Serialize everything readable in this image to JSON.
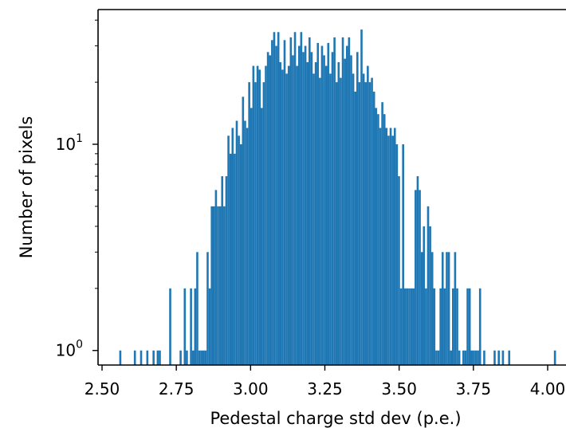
{
  "chart_data": {
    "type": "bar",
    "title": "",
    "xlabel": "Pedestal charge std dev (p.e.)",
    "ylabel": "Number of pixels",
    "yscale": "log",
    "xlim": [
      2.49,
      4.02
    ],
    "ylim": [
      0.85,
      45
    ],
    "bin_width": 0.007,
    "xticks": [
      {
        "value": 2.5,
        "label": "2.50"
      },
      {
        "value": 2.75,
        "label": "2.75"
      },
      {
        "value": 3.0,
        "label": "3.00"
      },
      {
        "value": 3.25,
        "label": "3.25"
      },
      {
        "value": 3.5,
        "label": "3.50"
      },
      {
        "value": 3.75,
        "label": "3.75"
      },
      {
        "value": 4.0,
        "label": "4.00"
      }
    ],
    "yticks": [
      {
        "value": 1,
        "base": "10",
        "exp": "0"
      },
      {
        "value": 10,
        "base": "10",
        "exp": "1"
      }
    ],
    "color": "#1f77b4",
    "grid": false,
    "legend": "none",
    "bins": [
      [
        2.558,
        1
      ],
      [
        2.607,
        1
      ],
      [
        2.628,
        1
      ],
      [
        2.649,
        1
      ],
      [
        2.67,
        1
      ],
      [
        2.684,
        1
      ],
      [
        2.691,
        1
      ],
      [
        2.726,
        2
      ],
      [
        2.761,
        1
      ],
      [
        2.775,
        2
      ],
      [
        2.782,
        1
      ],
      [
        2.796,
        2
      ],
      [
        2.803,
        1
      ],
      [
        2.81,
        2
      ],
      [
        2.817,
        3
      ],
      [
        2.824,
        1
      ],
      [
        2.831,
        1
      ],
      [
        2.838,
        1
      ],
      [
        2.845,
        1
      ],
      [
        2.852,
        3
      ],
      [
        2.859,
        2
      ],
      [
        2.866,
        5
      ],
      [
        2.873,
        5
      ],
      [
        2.88,
        6
      ],
      [
        2.887,
        5
      ],
      [
        2.894,
        5
      ],
      [
        2.901,
        7
      ],
      [
        2.908,
        5
      ],
      [
        2.915,
        7
      ],
      [
        2.922,
        11
      ],
      [
        2.929,
        9
      ],
      [
        2.936,
        12
      ],
      [
        2.943,
        9
      ],
      [
        2.95,
        13
      ],
      [
        2.957,
        11
      ],
      [
        2.964,
        10
      ],
      [
        2.971,
        17
      ],
      [
        2.978,
        13
      ],
      [
        2.985,
        12
      ],
      [
        2.992,
        20
      ],
      [
        2.999,
        15
      ],
      [
        3.006,
        24
      ],
      [
        3.013,
        20
      ],
      [
        3.02,
        24
      ],
      [
        3.027,
        23
      ],
      [
        3.034,
        15
      ],
      [
        3.041,
        20
      ],
      [
        3.048,
        24
      ],
      [
        3.055,
        28
      ],
      [
        3.062,
        27
      ],
      [
        3.069,
        32
      ],
      [
        3.076,
        35
      ],
      [
        3.083,
        30
      ],
      [
        3.09,
        35
      ],
      [
        3.097,
        25
      ],
      [
        3.104,
        23
      ],
      [
        3.111,
        32
      ],
      [
        3.118,
        22
      ],
      [
        3.125,
        24
      ],
      [
        3.132,
        33
      ],
      [
        3.139,
        27
      ],
      [
        3.146,
        35
      ],
      [
        3.153,
        24
      ],
      [
        3.16,
        30
      ],
      [
        3.167,
        35
      ],
      [
        3.174,
        28
      ],
      [
        3.181,
        30
      ],
      [
        3.188,
        25
      ],
      [
        3.195,
        33
      ],
      [
        3.202,
        28
      ],
      [
        3.209,
        22
      ],
      [
        3.216,
        25
      ],
      [
        3.223,
        31
      ],
      [
        3.23,
        21
      ],
      [
        3.237,
        30
      ],
      [
        3.244,
        27
      ],
      [
        3.251,
        24
      ],
      [
        3.258,
        31
      ],
      [
        3.265,
        22
      ],
      [
        3.272,
        28
      ],
      [
        3.279,
        33
      ],
      [
        3.286,
        20
      ],
      [
        3.293,
        25
      ],
      [
        3.3,
        21
      ],
      [
        3.307,
        33
      ],
      [
        3.314,
        26
      ],
      [
        3.321,
        30
      ],
      [
        3.328,
        33
      ],
      [
        3.335,
        27
      ],
      [
        3.342,
        22
      ],
      [
        3.349,
        18
      ],
      [
        3.356,
        28
      ],
      [
        3.363,
        20
      ],
      [
        3.37,
        36
      ],
      [
        3.377,
        22
      ],
      [
        3.384,
        20
      ],
      [
        3.391,
        24
      ],
      [
        3.398,
        20
      ],
      [
        3.405,
        21
      ],
      [
        3.412,
        18
      ],
      [
        3.419,
        15
      ],
      [
        3.426,
        14
      ],
      [
        3.433,
        12
      ],
      [
        3.44,
        16
      ],
      [
        3.447,
        14
      ],
      [
        3.454,
        12
      ],
      [
        3.461,
        11
      ],
      [
        3.468,
        12
      ],
      [
        3.475,
        11
      ],
      [
        3.482,
        12
      ],
      [
        3.489,
        10
      ],
      [
        3.496,
        7
      ],
      [
        3.503,
        2
      ],
      [
        3.51,
        10
      ],
      [
        3.517,
        2
      ],
      [
        3.524,
        2
      ],
      [
        3.531,
        2
      ],
      [
        3.538,
        2
      ],
      [
        3.545,
        2
      ],
      [
        3.552,
        6
      ],
      [
        3.559,
        7
      ],
      [
        3.566,
        6
      ],
      [
        3.573,
        3
      ],
      [
        3.58,
        4
      ],
      [
        3.587,
        2
      ],
      [
        3.594,
        5
      ],
      [
        3.601,
        4
      ],
      [
        3.608,
        3
      ],
      [
        3.615,
        2
      ],
      [
        3.622,
        1
      ],
      [
        3.629,
        1
      ],
      [
        3.636,
        2
      ],
      [
        3.643,
        3
      ],
      [
        3.65,
        2
      ],
      [
        3.657,
        3
      ],
      [
        3.664,
        3
      ],
      [
        3.671,
        1
      ],
      [
        3.678,
        2
      ],
      [
        3.685,
        3
      ],
      [
        3.692,
        2
      ],
      [
        3.699,
        1
      ],
      [
        3.713,
        1
      ],
      [
        3.72,
        1
      ],
      [
        3.727,
        2
      ],
      [
        3.734,
        2
      ],
      [
        3.741,
        1
      ],
      [
        3.748,
        1
      ],
      [
        3.755,
        1
      ],
      [
        3.762,
        1
      ],
      [
        3.769,
        2
      ],
      [
        3.783,
        1
      ],
      [
        3.818,
        1
      ],
      [
        3.832,
        1
      ],
      [
        3.846,
        1
      ],
      [
        3.867,
        1
      ],
      [
        4.021,
        1
      ]
    ]
  }
}
